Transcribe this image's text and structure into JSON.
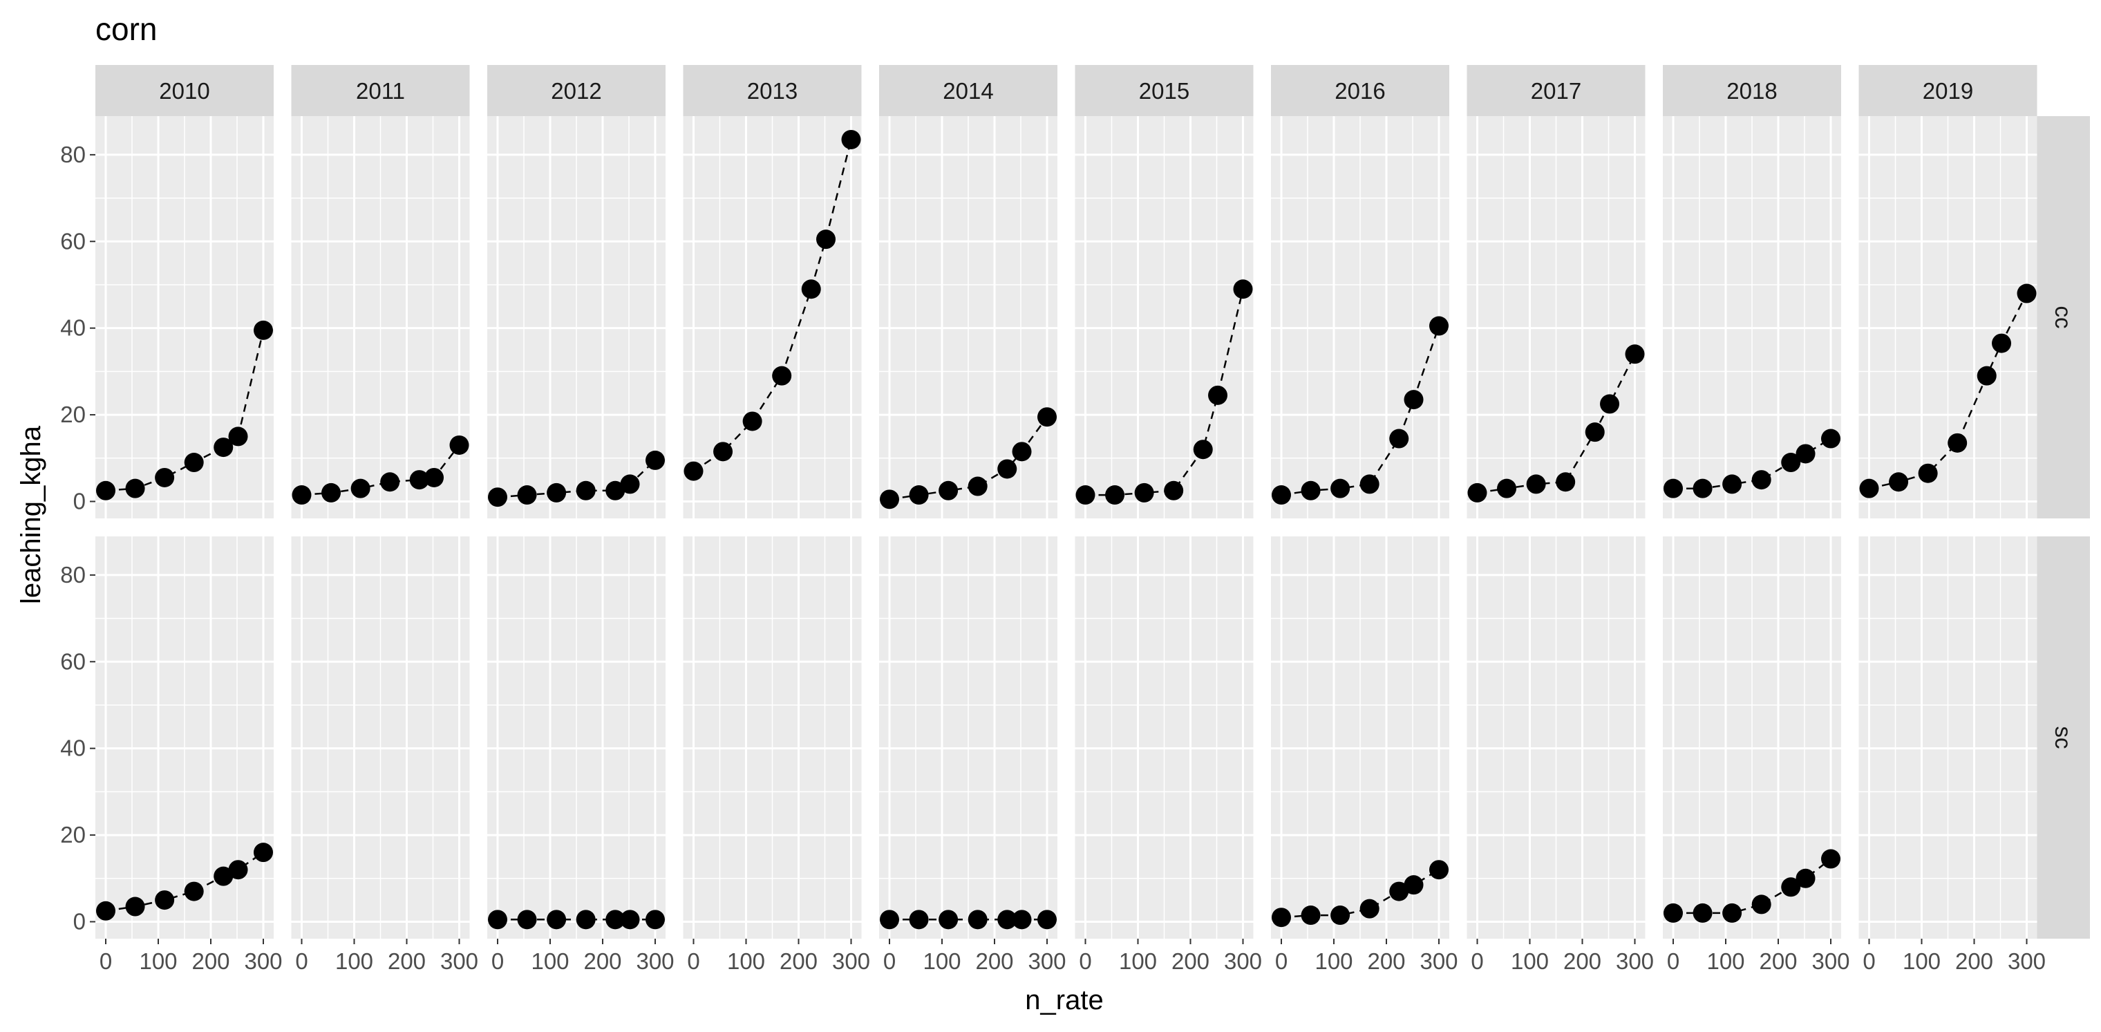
{
  "chart_data": {
    "type": "line",
    "title": "corn",
    "xlabel": "n_rate",
    "ylabel": "leaching_kgha",
    "xlim": [
      0,
      300
    ],
    "ylim": [
      -2,
      87
    ],
    "x_ticks": [
      0,
      100,
      200,
      300
    ],
    "y_ticks": [
      0,
      20,
      40,
      60,
      80
    ],
    "x_tick_labels": [
      "0",
      "100",
      "200",
      "300"
    ],
    "y_tick_labels": [
      "0",
      "20",
      "40",
      "60",
      "80"
    ],
    "grid": true,
    "legend": "none",
    "facet_columns": [
      "2010",
      "2011",
      "2012",
      "2013",
      "2014",
      "2015",
      "2016",
      "2017",
      "2018",
      "2019"
    ],
    "facet_rows": [
      "cc",
      "sc"
    ],
    "panels": [
      {
        "row": "cc",
        "col": "2010",
        "points": [
          [
            0,
            2.5
          ],
          [
            56,
            3
          ],
          [
            112,
            5.5
          ],
          [
            168,
            9
          ],
          [
            224,
            12.5
          ],
          [
            252,
            15
          ],
          [
            300,
            39.5
          ]
        ]
      },
      {
        "row": "cc",
        "col": "2011",
        "points": [
          [
            0,
            1.5
          ],
          [
            56,
            2
          ],
          [
            112,
            3
          ],
          [
            168,
            4.5
          ],
          [
            224,
            5
          ],
          [
            252,
            5.5
          ],
          [
            300,
            13
          ]
        ]
      },
      {
        "row": "cc",
        "col": "2012",
        "points": [
          [
            0,
            1
          ],
          [
            56,
            1.5
          ],
          [
            112,
            2
          ],
          [
            168,
            2.5
          ],
          [
            224,
            2.5
          ],
          [
            252,
            4
          ],
          [
            300,
            9.5
          ]
        ]
      },
      {
        "row": "cc",
        "col": "2013",
        "points": [
          [
            0,
            7
          ],
          [
            56,
            11.5
          ],
          [
            112,
            18.5
          ],
          [
            168,
            29
          ],
          [
            224,
            49
          ],
          [
            252,
            60.5
          ],
          [
            300,
            83.5
          ]
        ]
      },
      {
        "row": "cc",
        "col": "2014",
        "points": [
          [
            0,
            0.5
          ],
          [
            56,
            1.5
          ],
          [
            112,
            2.5
          ],
          [
            168,
            3.5
          ],
          [
            224,
            7.5
          ],
          [
            252,
            11.5
          ],
          [
            300,
            19.5
          ]
        ]
      },
      {
        "row": "cc",
        "col": "2015",
        "points": [
          [
            0,
            1.5
          ],
          [
            56,
            1.5
          ],
          [
            112,
            2
          ],
          [
            168,
            2.5
          ],
          [
            224,
            12
          ],
          [
            252,
            24.5
          ],
          [
            300,
            49
          ]
        ]
      },
      {
        "row": "cc",
        "col": "2016",
        "points": [
          [
            0,
            1.5
          ],
          [
            56,
            2.5
          ],
          [
            112,
            3
          ],
          [
            168,
            4
          ],
          [
            224,
            14.5
          ],
          [
            252,
            23.5
          ],
          [
            300,
            40.5
          ]
        ]
      },
      {
        "row": "cc",
        "col": "2017",
        "points": [
          [
            0,
            2
          ],
          [
            56,
            3
          ],
          [
            112,
            4
          ],
          [
            168,
            4.5
          ],
          [
            224,
            16
          ],
          [
            252,
            22.5
          ],
          [
            300,
            34
          ]
        ]
      },
      {
        "row": "cc",
        "col": "2018",
        "points": [
          [
            0,
            3
          ],
          [
            56,
            3
          ],
          [
            112,
            4
          ],
          [
            168,
            5
          ],
          [
            224,
            9
          ],
          [
            252,
            11
          ],
          [
            300,
            14.5
          ]
        ]
      },
      {
        "row": "cc",
        "col": "2019",
        "points": [
          [
            0,
            3
          ],
          [
            56,
            4.5
          ],
          [
            112,
            6.5
          ],
          [
            168,
            13.5
          ],
          [
            224,
            29
          ],
          [
            252,
            36.5
          ],
          [
            300,
            48
          ]
        ]
      },
      {
        "row": "sc",
        "col": "2010",
        "points": [
          [
            0,
            2.5
          ],
          [
            56,
            3.5
          ],
          [
            112,
            5
          ],
          [
            168,
            7
          ],
          [
            224,
            10.5
          ],
          [
            252,
            12
          ],
          [
            300,
            16
          ]
        ]
      },
      {
        "row": "sc",
        "col": "2011",
        "points": []
      },
      {
        "row": "sc",
        "col": "2012",
        "points": [
          [
            0,
            0.5
          ],
          [
            56,
            0.5
          ],
          [
            112,
            0.5
          ],
          [
            168,
            0.5
          ],
          [
            224,
            0.5
          ],
          [
            252,
            0.5
          ],
          [
            300,
            0.5
          ]
        ]
      },
      {
        "row": "sc",
        "col": "2013",
        "points": []
      },
      {
        "row": "sc",
        "col": "2014",
        "points": [
          [
            0,
            0.5
          ],
          [
            56,
            0.5
          ],
          [
            112,
            0.5
          ],
          [
            168,
            0.5
          ],
          [
            224,
            0.5
          ],
          [
            252,
            0.5
          ],
          [
            300,
            0.5
          ]
        ]
      },
      {
        "row": "sc",
        "col": "2015",
        "points": []
      },
      {
        "row": "sc",
        "col": "2016",
        "points": [
          [
            0,
            1
          ],
          [
            56,
            1.5
          ],
          [
            112,
            1.5
          ],
          [
            168,
            3
          ],
          [
            224,
            7
          ],
          [
            252,
            8.5
          ],
          [
            300,
            12
          ]
        ]
      },
      {
        "row": "sc",
        "col": "2017",
        "points": []
      },
      {
        "row": "sc",
        "col": "2018",
        "points": [
          [
            0,
            2
          ],
          [
            56,
            2
          ],
          [
            112,
            2
          ],
          [
            168,
            4
          ],
          [
            224,
            8
          ],
          [
            252,
            10
          ],
          [
            300,
            14.5
          ]
        ]
      },
      {
        "row": "sc",
        "col": "2019",
        "points": []
      }
    ]
  },
  "colors": {
    "panel_background": "#ebebeb",
    "grid_major": "#ffffff",
    "strip_background": "#d9d9d9",
    "point": "#000000",
    "line": "#000000",
    "tick_text": "#4d4d4d"
  }
}
